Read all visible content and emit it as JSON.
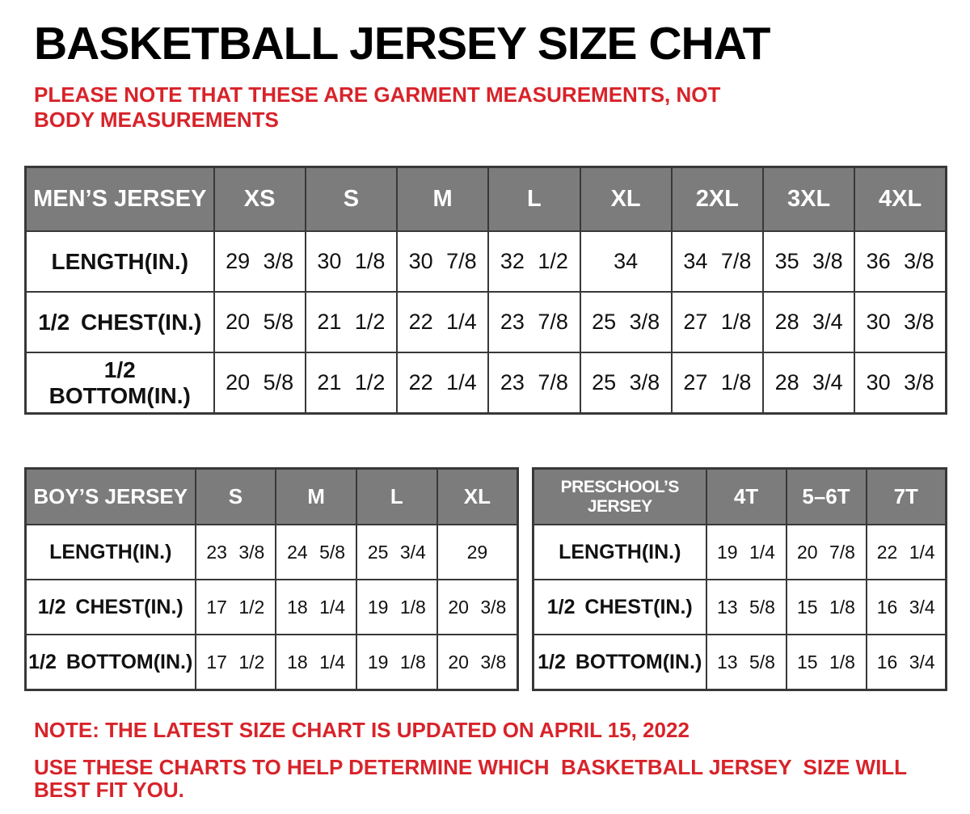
{
  "page": {
    "title": "BASKETBALL JERSEY SIZE CHAT",
    "subtitle": "PLEASE NOTE THAT THESE ARE GARMENT MEASUREMENTS, NOT BODY MEASUREMENTS",
    "notes": [
      "NOTE: THE LATEST SIZE CHART IS UPDATED ON APRIL 15, 2022",
      "USE THESE CHARTS TO HELP DETERMINE WHICH  BASKETBALL JERSEY  SIZE WILL BEST FIT YOU."
    ],
    "colors": {
      "accent_red": "#D8232A",
      "header_gray": "#7C7C7C",
      "border_dark": "#383838",
      "text_black": "#111111",
      "background": "#FFFFFF"
    }
  },
  "tables": {
    "mens": {
      "name_header": "MEN’S JERSEY",
      "size_headers": [
        "XS",
        "S",
        "M",
        "L",
        "XL",
        "2XL",
        "3XL",
        "4XL"
      ],
      "rows": [
        {
          "label": "LENGTH(IN.)",
          "values": [
            "29 3/8",
            "30 1/8",
            "30 7/8",
            "32 1/2",
            "34",
            "34 7/8",
            "35 3/8",
            "36 3/8"
          ]
        },
        {
          "label": "1/2 CHEST(IN.)",
          "values": [
            "20 5/8",
            "21 1/2",
            "22 1/4",
            "23 7/8",
            "25 3/8",
            "27 1/8",
            "28 3/4",
            "30 3/8"
          ]
        },
        {
          "label": "1/2 BOTTOM(IN.)",
          "values": [
            "20 5/8",
            "21 1/2",
            "22 1/4",
            "23 7/8",
            "25 3/8",
            "27 1/8",
            "28 3/4",
            "30 3/8"
          ]
        }
      ]
    },
    "boys": {
      "name_header": "BOY’S JERSEY",
      "size_headers": [
        "S",
        "M",
        "L",
        "XL"
      ],
      "rows": [
        {
          "label": "LENGTH(IN.)",
          "values": [
            "23 3/8",
            "24 5/8",
            "25 3/4",
            "29"
          ]
        },
        {
          "label": "1/2 CHEST(IN.)",
          "values": [
            "17 1/2",
            "18 1/4",
            "19 1/8",
            "20 3/8"
          ]
        },
        {
          "label": "1/2 BOTTOM(IN.)",
          "values": [
            "17 1/2",
            "18 1/4",
            "19 1/8",
            "20 3/8"
          ]
        }
      ]
    },
    "preschool": {
      "name_header": "PRESCHOOL’S JERSEY",
      "size_headers": [
        "4T",
        "5–6T",
        "7T"
      ],
      "rows": [
        {
          "label": "LENGTH(IN.)",
          "values": [
            "19 1/4",
            "20 7/8",
            "22 1/4"
          ]
        },
        {
          "label": "1/2 CHEST(IN.)",
          "values": [
            "13 5/8",
            "15 1/8",
            "16 3/4"
          ]
        },
        {
          "label": "1/2 BOTTOM(IN.)",
          "values": [
            "13 5/8",
            "15 1/8",
            "16 3/4"
          ]
        }
      ]
    }
  }
}
